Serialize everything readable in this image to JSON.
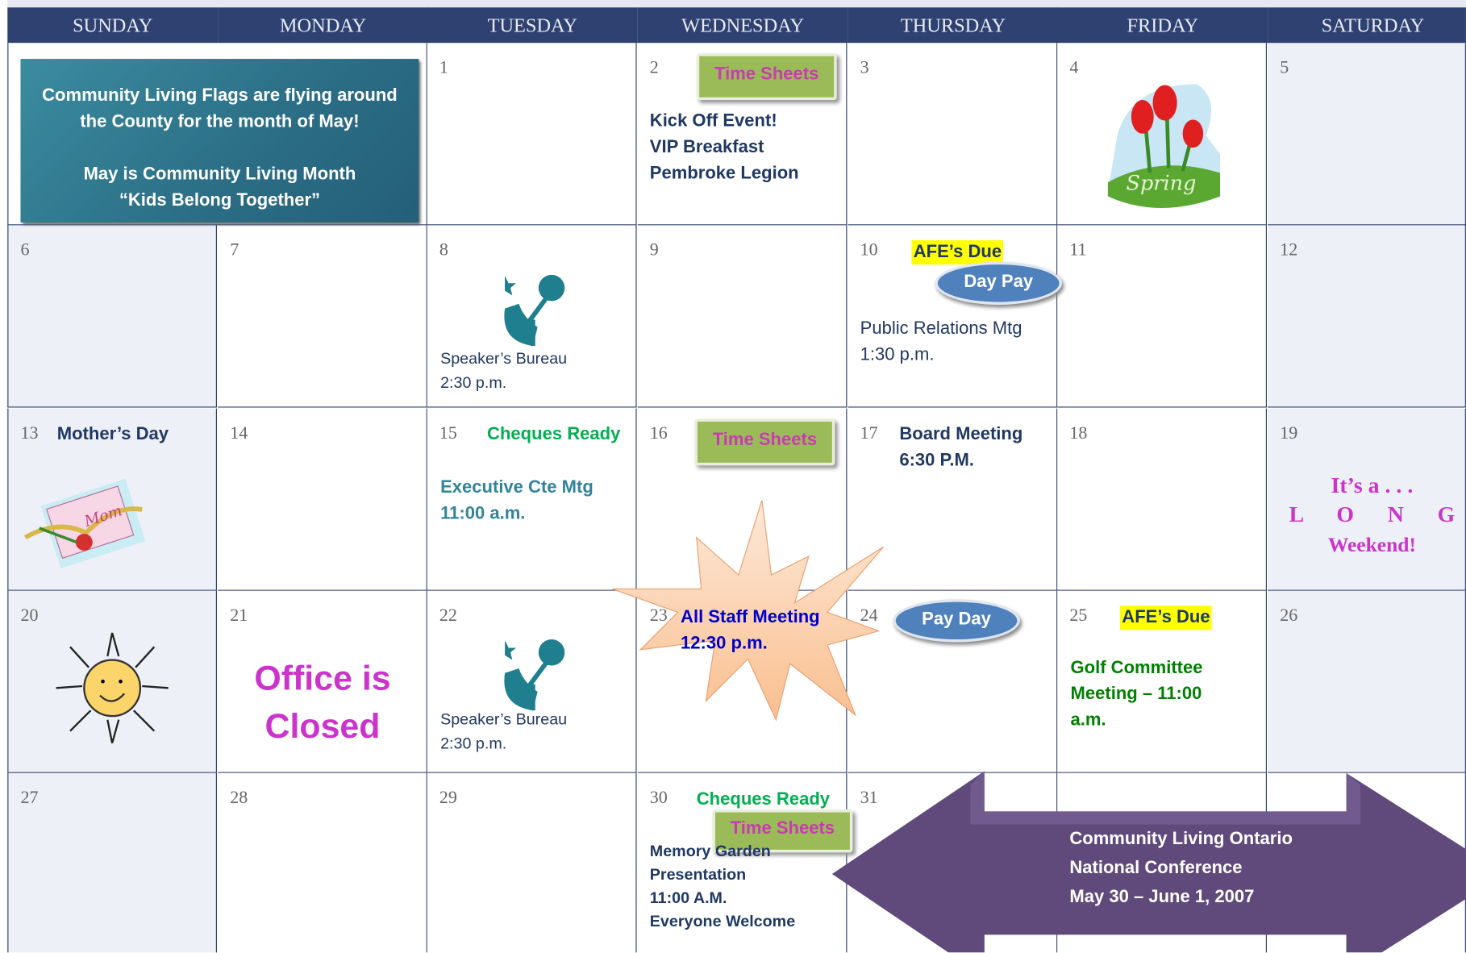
{
  "days": [
    "SUNDAY",
    "MONDAY",
    "TUESDAY",
    "WEDNESDAY",
    "THURSDAY",
    "FRIDAY",
    "SATURDAY"
  ],
  "banner": [
    "Community Living Flags are flying around the County for the month of May!",
    "May is Community Living Month",
    "“Kids Belong Together”"
  ],
  "dates": [
    1,
    2,
    3,
    4,
    5,
    6,
    7,
    8,
    9,
    10,
    11,
    12,
    13,
    14,
    15,
    16,
    17,
    18,
    19,
    20,
    21,
    22,
    23,
    24,
    25,
    26,
    27,
    28,
    29,
    30,
    31
  ],
  "events": {
    "day2": {
      "badge": "Time Sheets",
      "lines": [
        "Kick Off Event!",
        "VIP Breakfast",
        "Pembroke Legion"
      ]
    },
    "day4": {
      "art": "Spring"
    },
    "day8": {
      "lines": [
        "Speaker’s Bureau",
        "2:30 p.m."
      ]
    },
    "day10": {
      "highlight": "AFE’s Due",
      "pill": "Day Pay",
      "lines": [
        "Public Relations Mtg",
        "1:30 p.m."
      ]
    },
    "day13": {
      "title": "Mother’s Day",
      "art": "Mom"
    },
    "day15": {
      "title": "Cheques Ready",
      "lines": [
        "Executive Cte Mtg",
        "11:00 a.m."
      ]
    },
    "day16": {
      "badge": "Time Sheets"
    },
    "day17": {
      "lines": [
        "Board Meeting",
        "6:30 P.M."
      ]
    },
    "day19": {
      "lines": [
        "It’s a . . .",
        "L O N G",
        "Weekend!"
      ]
    },
    "day21": {
      "lines": [
        "Office is",
        "Closed"
      ]
    },
    "day22": {
      "lines": [
        "Speaker’s Bureau",
        "2:30 p.m."
      ]
    },
    "day23": {
      "lines": [
        "All Staff Meeting",
        "12:30 p.m."
      ]
    },
    "day24": {
      "pill": "Pay Day"
    },
    "day25": {
      "highlight": "AFE’s Due",
      "lines": [
        "Golf  Committee",
        "Meeting – 11:00",
        "a.m."
      ]
    },
    "day30": {
      "title": "Cheques Ready",
      "badge": "Time Sheets",
      "lines": [
        "Memory Garden",
        "Presentation",
        "11:00 A.M.",
        "Everyone Welcome"
      ]
    }
  },
  "conference": [
    "Community Living Ontario",
    "National Conference",
    "May 30 – June 1, 2007"
  ]
}
